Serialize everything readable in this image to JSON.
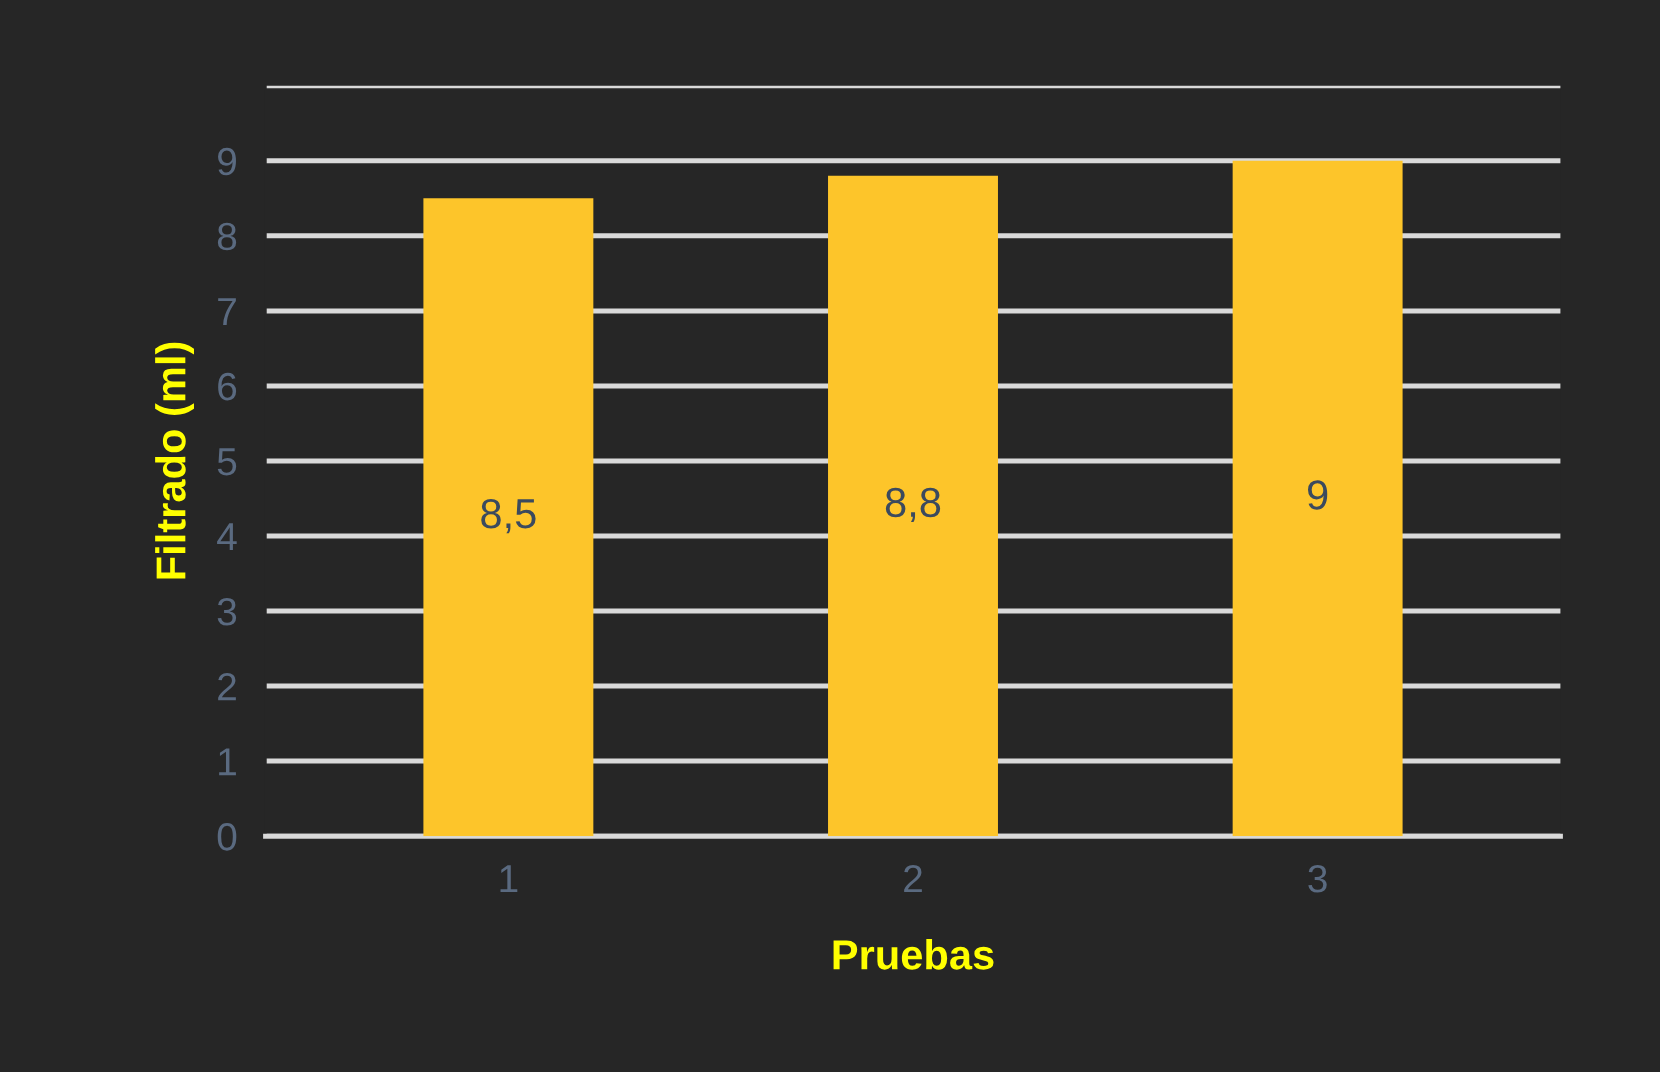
{
  "chart_data": {
    "type": "bar",
    "categories": [
      "1",
      "2",
      "3"
    ],
    "values": [
      8.5,
      8.8,
      9
    ],
    "value_labels": [
      "8,5",
      "8,8",
      "9"
    ],
    "color": "#fdc52a",
    "xlabel": "Pruebas",
    "ylabel": "Filtrado (ml)",
    "ylim": [
      0,
      10
    ],
    "yticks": [
      0,
      1,
      2,
      3,
      4,
      5,
      6,
      7,
      8,
      9,
      {
        "value": 10,
        "label": null
      }
    ],
    "grid": "y"
  }
}
